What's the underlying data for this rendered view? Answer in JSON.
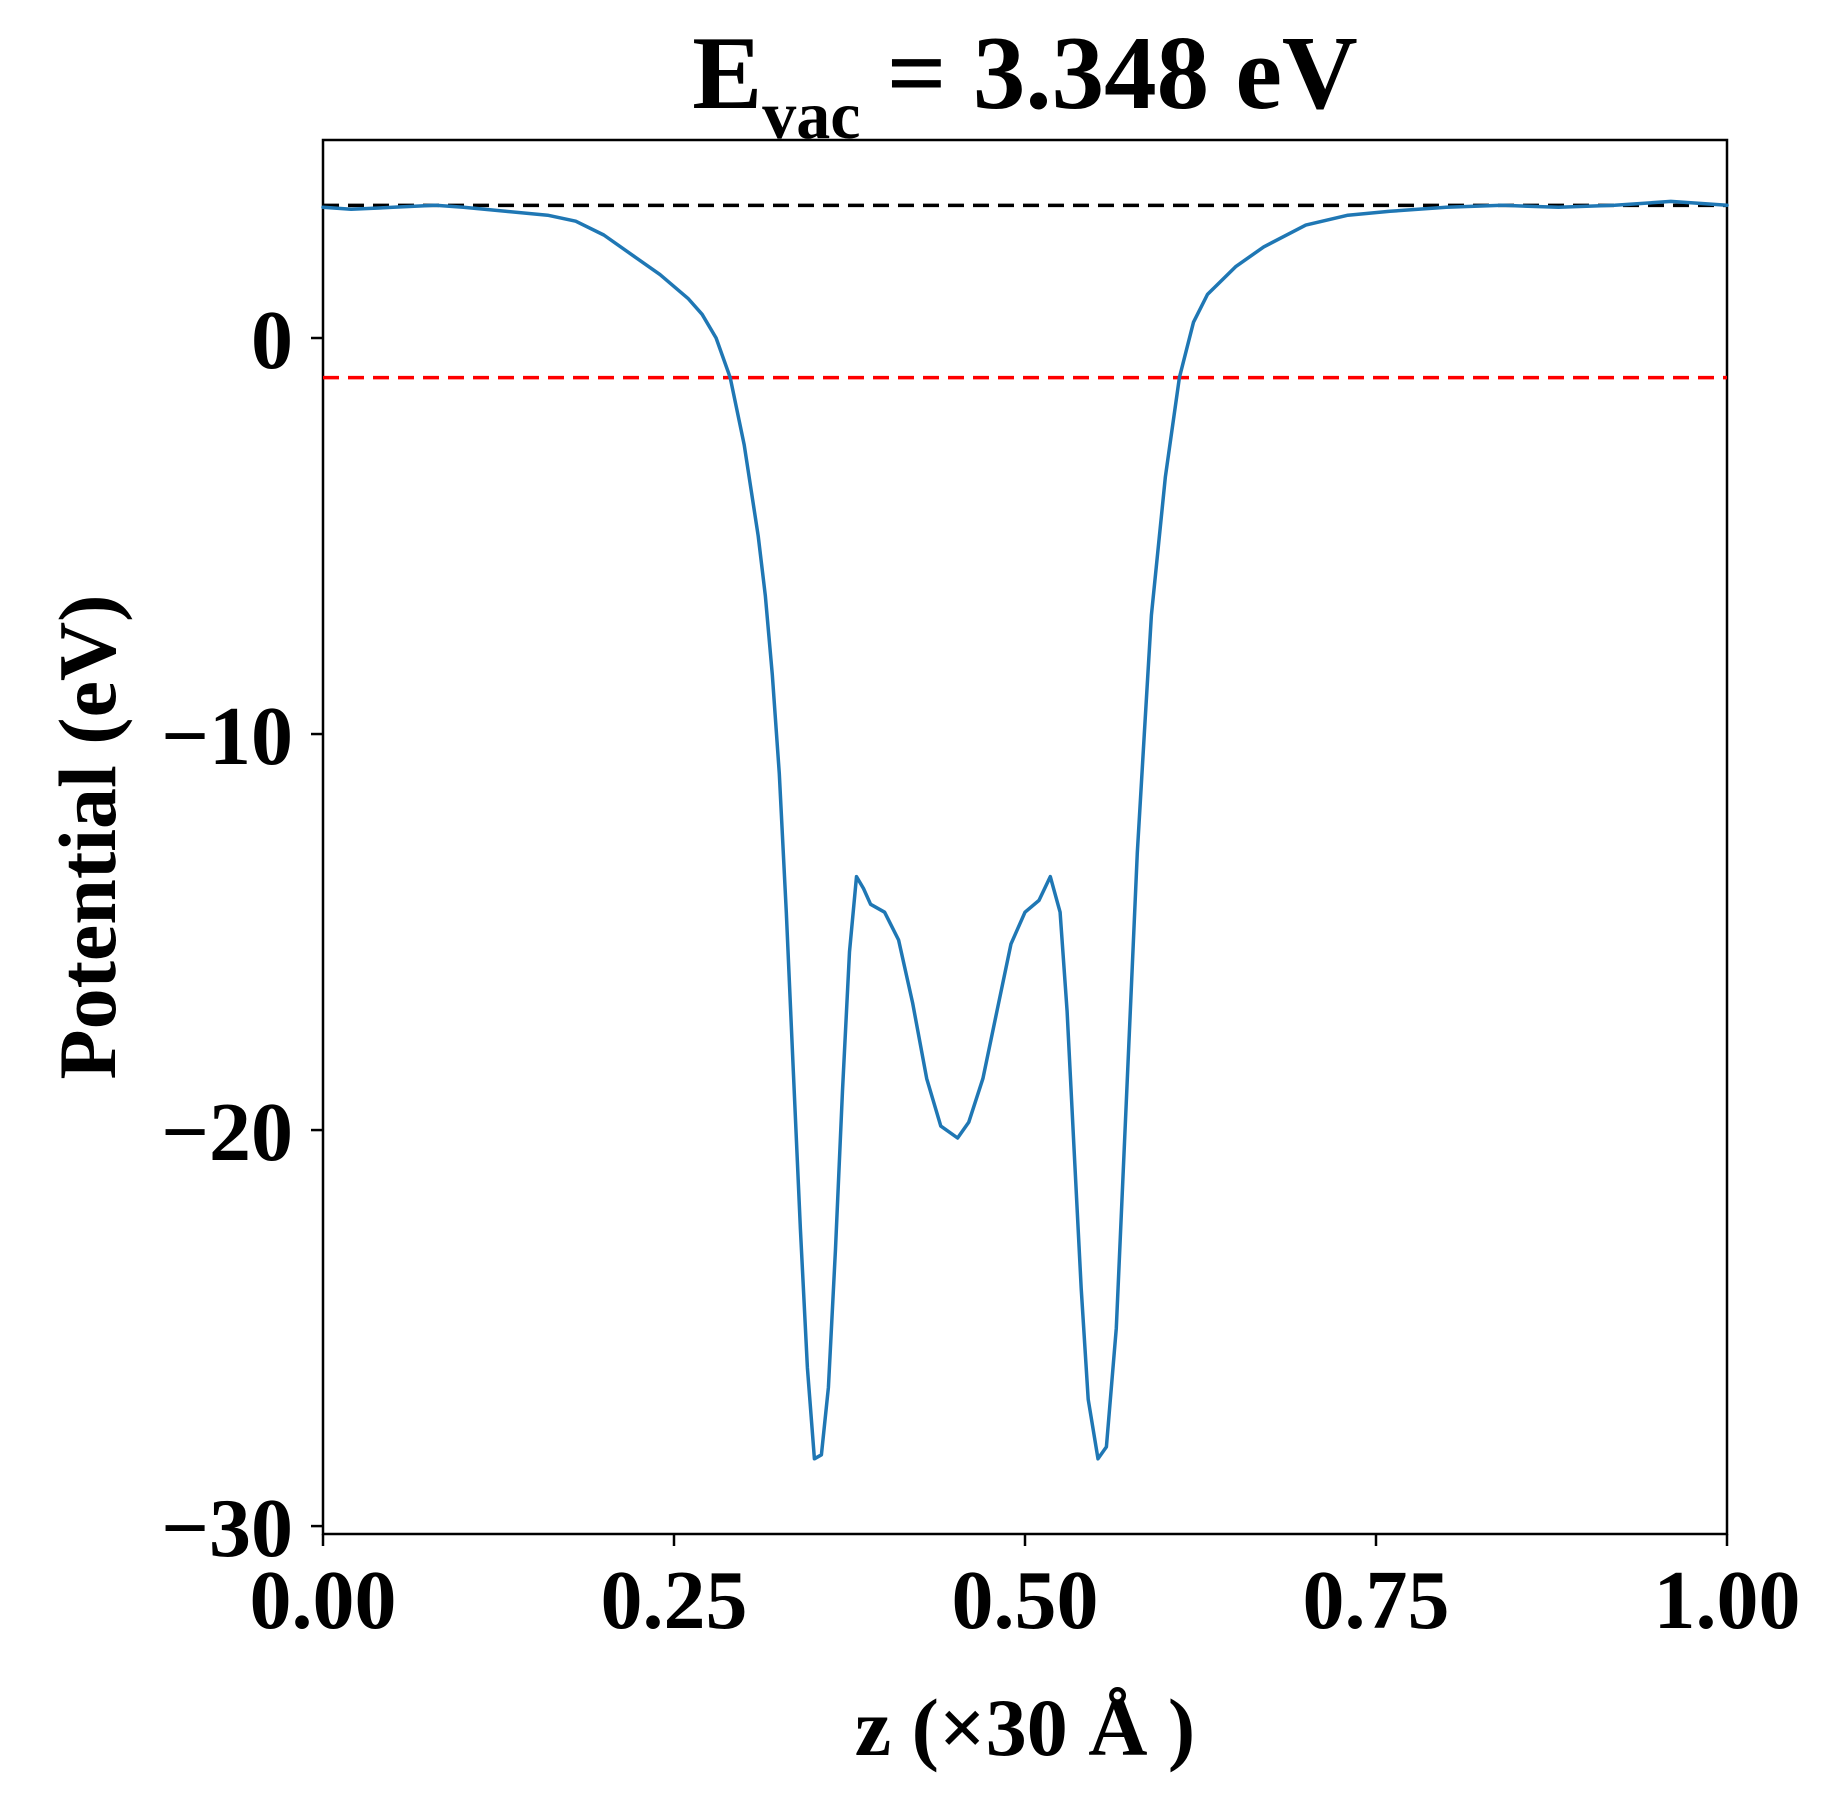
{
  "chart_data": {
    "type": "line",
    "title": {
      "main": "E",
      "subscript": "vac",
      "rest": " = 3.348 eV"
    },
    "xlabel": "z (×30 Å )",
    "ylabel": "Potential (eV)",
    "xlim": [
      0,
      1
    ],
    "ylim": [
      -30.2,
      5.0
    ],
    "xticks": [
      0,
      0.25,
      0.5,
      0.75,
      1.0
    ],
    "xtick_labels": [
      "0.00",
      "0.25",
      "0.50",
      "0.75",
      "1.00"
    ],
    "yticks": [
      0,
      -10,
      -20,
      -30
    ],
    "ytick_labels": [
      "0",
      "−10",
      "−20",
      "−30"
    ],
    "grid": false,
    "legend": "none",
    "reference_lines": [
      {
        "y": 3.348,
        "color": "#000000",
        "style": "dashed"
      },
      {
        "y": -1.0,
        "color": "#ff0000",
        "style": "dashed"
      }
    ],
    "series": [
      {
        "color": "#1f77b4",
        "points": [
          [
            0.0,
            3.3
          ],
          [
            0.02,
            3.25
          ],
          [
            0.05,
            3.3
          ],
          [
            0.08,
            3.35
          ],
          [
            0.1,
            3.3
          ],
          [
            0.13,
            3.2
          ],
          [
            0.16,
            3.1
          ],
          [
            0.18,
            2.95
          ],
          [
            0.2,
            2.6
          ],
          [
            0.22,
            2.1
          ],
          [
            0.24,
            1.6
          ],
          [
            0.26,
            1.0
          ],
          [
            0.27,
            0.6
          ],
          [
            0.28,
            0.0
          ],
          [
            0.29,
            -1.0
          ],
          [
            0.3,
            -2.7
          ],
          [
            0.31,
            -5.0
          ],
          [
            0.315,
            -6.5
          ],
          [
            0.32,
            -8.5
          ],
          [
            0.325,
            -11.0
          ],
          [
            0.33,
            -14.5
          ],
          [
            0.335,
            -18.5
          ],
          [
            0.34,
            -22.5
          ],
          [
            0.345,
            -26.0
          ],
          [
            0.35,
            -28.3
          ],
          [
            0.355,
            -28.2
          ],
          [
            0.36,
            -26.5
          ],
          [
            0.365,
            -23.0
          ],
          [
            0.37,
            -19.0
          ],
          [
            0.375,
            -15.5
          ],
          [
            0.38,
            -13.6
          ],
          [
            0.385,
            -13.9
          ],
          [
            0.39,
            -14.3
          ],
          [
            0.4,
            -14.5
          ],
          [
            0.41,
            -15.2
          ],
          [
            0.42,
            -16.8
          ],
          [
            0.43,
            -18.7
          ],
          [
            0.44,
            -19.9
          ],
          [
            0.452,
            -20.2
          ],
          [
            0.46,
            -19.8
          ],
          [
            0.47,
            -18.7
          ],
          [
            0.48,
            -17.0
          ],
          [
            0.49,
            -15.3
          ],
          [
            0.5,
            -14.5
          ],
          [
            0.51,
            -14.2
          ],
          [
            0.518,
            -13.6
          ],
          [
            0.525,
            -14.5
          ],
          [
            0.53,
            -17.0
          ],
          [
            0.535,
            -20.5
          ],
          [
            0.54,
            -24.0
          ],
          [
            0.545,
            -26.8
          ],
          [
            0.552,
            -28.3
          ],
          [
            0.558,
            -28.0
          ],
          [
            0.565,
            -25.0
          ],
          [
            0.57,
            -21.0
          ],
          [
            0.575,
            -17.0
          ],
          [
            0.58,
            -13.0
          ],
          [
            0.585,
            -10.0
          ],
          [
            0.59,
            -7.0
          ],
          [
            0.6,
            -3.5
          ],
          [
            0.61,
            -1.0
          ],
          [
            0.62,
            0.4
          ],
          [
            0.63,
            1.1
          ],
          [
            0.65,
            1.8
          ],
          [
            0.67,
            2.3
          ],
          [
            0.7,
            2.85
          ],
          [
            0.73,
            3.1
          ],
          [
            0.76,
            3.2
          ],
          [
            0.8,
            3.3
          ],
          [
            0.84,
            3.35
          ],
          [
            0.88,
            3.3
          ],
          [
            0.92,
            3.35
          ],
          [
            0.96,
            3.45
          ],
          [
            1.0,
            3.35
          ]
        ]
      }
    ]
  }
}
